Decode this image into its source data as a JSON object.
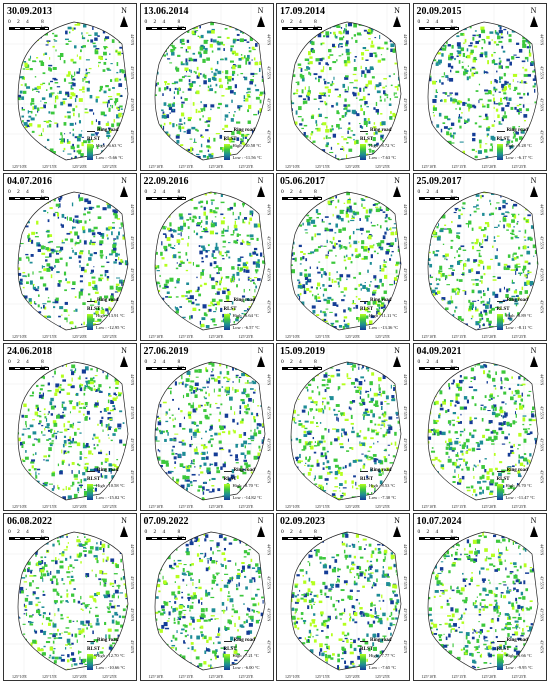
{
  "panels": [
    {
      "date": "30.09.2013",
      "high": "High : 6.63 °C",
      "low": "Low : -5.66 °C"
    },
    {
      "date": "13.06.2014",
      "high": "High : 10.58 °C",
      "low": "Low : -11.56 °C"
    },
    {
      "date": "17.09.2014",
      "high": "High : 8.72 °C",
      "low": "Low : -7.63 °C"
    },
    {
      "date": "20.09.2015",
      "high": "High : 9.28 °C",
      "low": "Low : -6.17 °C"
    },
    {
      "date": "04.07.2016",
      "high": "High : 13.91 °C",
      "low": "Low : -12.95 °C"
    },
    {
      "date": "22.09.2016",
      "high": "High : 6.64 °C",
      "low": "Low : -6.57 °C"
    },
    {
      "date": "05.06.2017",
      "high": "High : 11.11 °C",
      "low": "Low : -13.36 °C"
    },
    {
      "date": "25.09.2017",
      "high": "High : 8.89 °C",
      "low": "Low : -8.11 °C"
    },
    {
      "date": "24.06.2018",
      "high": "High : 10.58 °C",
      "low": "Low : -15.02 °C"
    },
    {
      "date": "27.06.2019",
      "high": "High : 8.70 °C",
      "low": "Low : -14.82 °C"
    },
    {
      "date": "15.09.2019",
      "high": "High : 8.53 °C",
      "low": "Low : -7.30 °C"
    },
    {
      "date": "04.09.2021",
      "high": "High : 9.70 °C",
      "low": "Low : -11.47 °C"
    },
    {
      "date": "06.08.2022",
      "high": "High : 12.70 °C",
      "low": "Low : -10.66 °C"
    },
    {
      "date": "07.09.2022",
      "high": "High : 7.21 °C",
      "low": "Low : -6.00 °C"
    },
    {
      "date": "02.09.2023",
      "high": "High : 7.77 °C",
      "low": "Low : -7.65 °C"
    },
    {
      "date": "10.07.2024",
      "high": "High : 9.66 °C",
      "low": "Low : -9.95 °C"
    }
  ],
  "scale": {
    "t0": "0",
    "t2": "2",
    "t4": "4",
    "t8": "8 km"
  },
  "north_label": "N",
  "legend": {
    "ring_road": "Ring road",
    "title": "RLST"
  },
  "lat_labels": [
    "44°0'N",
    "43°55'N",
    "43°50'N",
    "43°45'N"
  ],
  "lon_labels": [
    "125°10'E",
    "125°15'E",
    "125°20'E",
    "125°25'E"
  ],
  "colors": {
    "high": "#b4ff1e",
    "mid": "#3cc83c",
    "teal": "#1e8c96",
    "low": "#143c96"
  }
}
